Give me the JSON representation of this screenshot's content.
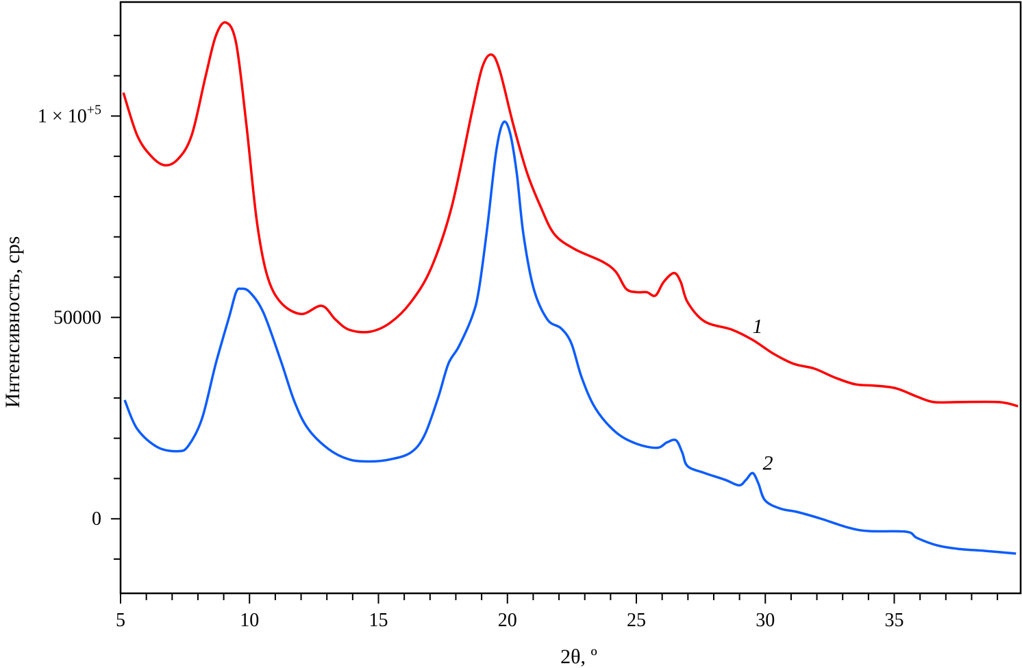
{
  "chart_data": {
    "type": "line",
    "title": "",
    "xlabel": "2θ, º",
    "ylabel": "Интенсивность, cps",
    "xlim": [
      5,
      39.9
    ],
    "ylim": [
      -18500,
      128300
    ],
    "x_major_ticks": [
      5,
      10,
      15,
      20,
      25,
      30,
      35
    ],
    "x_minor_step": 1,
    "y_major_ticks": [
      {
        "value": 0,
        "label": "0"
      },
      {
        "value": 50000,
        "label": "50000"
      },
      {
        "value": 100000,
        "label": "1 × 10",
        "sup": "+5"
      }
    ],
    "y_minor_step": 10000,
    "grid": false,
    "legend": "none",
    "series": [
      {
        "name": "1",
        "color": "#ff0000",
        "label_at": [
          29.7,
          47800
        ],
        "x": [
          5.11,
          5.64,
          6.17,
          6.7,
          7.23,
          7.76,
          8.29,
          8.69,
          9.08,
          9.48,
          9.88,
          10.28,
          10.68,
          11.21,
          12.0,
          12.8,
          13.33,
          13.86,
          14.66,
          15.45,
          16.25,
          17.04,
          17.84,
          18.63,
          19.03,
          19.38,
          19.7,
          20.23,
          20.76,
          21.29,
          21.82,
          22.61,
          23.67,
          24.2,
          24.6,
          25.0,
          25.4,
          25.74,
          26.06,
          26.46,
          26.72,
          26.99,
          27.65,
          28.71,
          29.51,
          30.31,
          31.1,
          31.9,
          32.69,
          33.49,
          34.28,
          35.08,
          35.88,
          36.54,
          37.47,
          39.06,
          39.8
        ],
        "y": [
          105800,
          95260,
          90170,
          87800,
          89330,
          95260,
          109670,
          119840,
          123230,
          118140,
          97800,
          74070,
          60510,
          53730,
          50850,
          52880,
          49490,
          46950,
          46440,
          48650,
          53730,
          62210,
          77460,
          101190,
          112210,
          115260,
          111360,
          97800,
          85940,
          77460,
          70680,
          66950,
          63900,
          61360,
          57120,
          56270,
          56270,
          55430,
          58820,
          61020,
          58820,
          53730,
          48990,
          46950,
          44410,
          41020,
          38480,
          37290,
          35090,
          33390,
          33050,
          32370,
          30340,
          28980,
          28980,
          28980,
          27970
        ]
      },
      {
        "name": "2",
        "color": "#0a5cff",
        "label_at": [
          30.1,
          13900
        ],
        "x": [
          5.16,
          5.64,
          6.43,
          7.23,
          7.63,
          8.16,
          8.69,
          9.22,
          9.48,
          9.67,
          10.01,
          10.54,
          11.21,
          11.74,
          12.27,
          13.07,
          13.86,
          14.66,
          15.45,
          16.25,
          16.78,
          17.31,
          17.71,
          18.11,
          18.64,
          18.9,
          19.22,
          19.56,
          19.83,
          20.09,
          20.36,
          20.62,
          21.02,
          21.55,
          22.08,
          22.48,
          22.88,
          23.41,
          24.2,
          25.0,
          25.8,
          26.19,
          26.54,
          26.78,
          26.99,
          27.65,
          28.45,
          28.98,
          29.25,
          29.51,
          29.73,
          29.99,
          30.58,
          31.24,
          32.17,
          33.23,
          34.02,
          35.48,
          35.88,
          36.67,
          37.47,
          38.53,
          39.72
        ],
        "y": [
          29490,
          22370,
          17800,
          16780,
          18140,
          24920,
          38480,
          50340,
          56270,
          57120,
          56270,
          51190,
          39320,
          29150,
          22370,
          17290,
          14750,
          14240,
          14750,
          16440,
          20680,
          30000,
          38480,
          42710,
          50340,
          57120,
          72380,
          91020,
          98310,
          96110,
          85940,
          70680,
          57120,
          49490,
          47290,
          43560,
          35090,
          27460,
          21530,
          18650,
          17630,
          18980,
          19490,
          16440,
          13050,
          11360,
          9660,
          8310,
          9660,
          11360,
          8810,
          4580,
          2540,
          1700,
          0,
          -2200,
          -3050,
          -3220,
          -4750,
          -6610,
          -7460,
          -7970,
          -8640
        ]
      }
    ]
  }
}
